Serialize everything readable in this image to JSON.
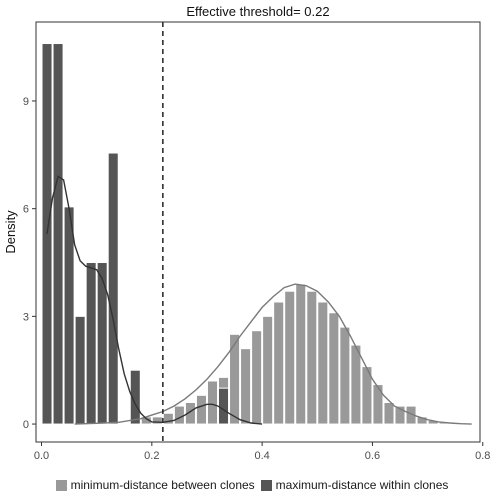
{
  "chart_data": {
    "type": "histogram+density",
    "title": "Effective threshold= 0.22",
    "ylabel": "Density",
    "xlabel": "",
    "xlim": [
      -0.01,
      0.795
    ],
    "ylim": [
      -0.5,
      11.2
    ],
    "x_ticks": [
      0.0,
      0.2,
      0.4,
      0.6,
      0.8
    ],
    "x_tick_labels": [
      "0.0",
      "0.2",
      "0.4",
      "0.6",
      "0.8"
    ],
    "y_ticks": [
      0,
      3,
      6,
      9
    ],
    "y_tick_labels": [
      "0",
      "3",
      "6",
      "9"
    ],
    "threshold": 0.22,
    "bin_width": 0.02,
    "series": [
      {
        "name": "minimum-distance between clones",
        "color": "#999999",
        "line_color": "#7a7a7a",
        "bin_starts": [
          0.16,
          0.18,
          0.2,
          0.22,
          0.24,
          0.26,
          0.28,
          0.3,
          0.32,
          0.34,
          0.36,
          0.38,
          0.4,
          0.42,
          0.44,
          0.46,
          0.48,
          0.5,
          0.52,
          0.54,
          0.56,
          0.58,
          0.6,
          0.62,
          0.64,
          0.66,
          0.68,
          0.7,
          0.72,
          0.74
        ],
        "values": [
          0.1,
          0.2,
          0.2,
          0.3,
          0.5,
          0.6,
          0.8,
          1.2,
          1.3,
          2.5,
          2.1,
          2.6,
          3.0,
          3.4,
          3.7,
          3.9,
          3.7,
          3.4,
          3.1,
          2.7,
          2.2,
          1.6,
          1.1,
          0.6,
          0.5,
          0.5,
          0.2,
          0.1,
          0.05,
          0.0
        ],
        "density_x": [
          0.06,
          0.1,
          0.14,
          0.18,
          0.2,
          0.22,
          0.24,
          0.26,
          0.28,
          0.3,
          0.32,
          0.34,
          0.36,
          0.38,
          0.4,
          0.42,
          0.44,
          0.46,
          0.48,
          0.5,
          0.52,
          0.54,
          0.56,
          0.58,
          0.6,
          0.62,
          0.64,
          0.66,
          0.68,
          0.7,
          0.72,
          0.74,
          0.76,
          0.78
        ],
        "density_y": [
          0.0,
          0.02,
          0.05,
          0.15,
          0.25,
          0.35,
          0.5,
          0.7,
          0.95,
          1.25,
          1.6,
          2.0,
          2.45,
          2.85,
          3.25,
          3.55,
          3.8,
          3.9,
          3.85,
          3.7,
          3.4,
          3.0,
          2.45,
          1.85,
          1.25,
          0.8,
          0.5,
          0.35,
          0.22,
          0.12,
          0.06,
          0.03,
          0.01,
          0.0
        ]
      },
      {
        "name": "maximum-distance within clones",
        "color": "#555555",
        "line_color": "#333333",
        "bin_starts": [
          0.0,
          0.02,
          0.04,
          0.06,
          0.08,
          0.1,
          0.12,
          0.14,
          0.16,
          0.18,
          0.3,
          0.32
        ],
        "values": [
          10.6,
          10.6,
          6.05,
          3.0,
          4.5,
          4.5,
          7.55,
          0.0,
          1.5,
          0.0,
          0.0,
          1.0
        ],
        "density_x": [
          0.01,
          0.02,
          0.03,
          0.04,
          0.05,
          0.06,
          0.07,
          0.08,
          0.09,
          0.1,
          0.11,
          0.12,
          0.13,
          0.14,
          0.15,
          0.16,
          0.17,
          0.18,
          0.19,
          0.2,
          0.22,
          0.24,
          0.26,
          0.28,
          0.3,
          0.31,
          0.32,
          0.33,
          0.34,
          0.36,
          0.38,
          0.4
        ],
        "density_y": [
          5.3,
          6.3,
          6.9,
          6.8,
          6.0,
          5.0,
          4.55,
          4.4,
          4.35,
          4.3,
          4.05,
          3.6,
          2.9,
          2.1,
          1.4,
          0.9,
          0.55,
          0.3,
          0.15,
          0.06,
          0.05,
          0.1,
          0.25,
          0.45,
          0.55,
          0.55,
          0.5,
          0.4,
          0.3,
          0.12,
          0.03,
          0.0
        ]
      }
    ],
    "legend_position": "bottom",
    "grid": false
  },
  "legend": {
    "items": [
      {
        "label": "minimum-distance between clones",
        "color": "#999999"
      },
      {
        "label": "maximum-distance within clones",
        "color": "#555555"
      }
    ]
  }
}
